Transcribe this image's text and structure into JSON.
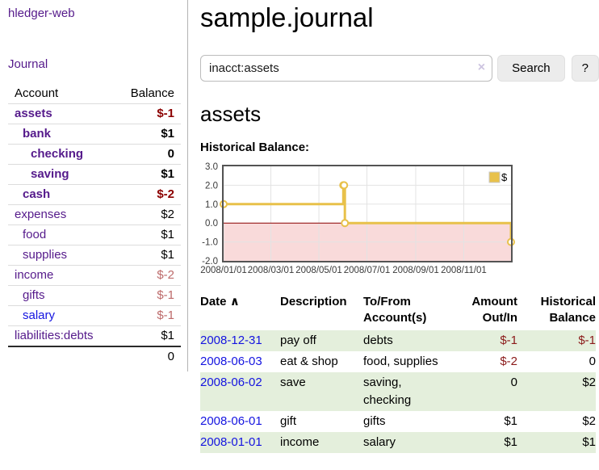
{
  "sidebar": {
    "brand": "hledger-web",
    "journal_link": "Journal",
    "accounts": {
      "col_account": "Account",
      "col_balance": "Balance",
      "rows": [
        {
          "name": "assets",
          "balance": "$-1",
          "indent": 1,
          "bold": true,
          "neg": "strong"
        },
        {
          "name": "bank",
          "balance": "$1",
          "indent": 2,
          "bold": true
        },
        {
          "name": "checking",
          "balance": "0",
          "indent": 3,
          "bold": true
        },
        {
          "name": "saving",
          "balance": "$1",
          "indent": 3,
          "bold": true
        },
        {
          "name": "cash",
          "balance": "$-2",
          "indent": 2,
          "bold": true,
          "neg": "strong"
        },
        {
          "name": "expenses",
          "balance": "$2",
          "indent": 1
        },
        {
          "name": "food",
          "balance": "$1",
          "indent": 2
        },
        {
          "name": "supplies",
          "balance": "$1",
          "indent": 2
        },
        {
          "name": "income",
          "balance": "$-2",
          "indent": 1,
          "neg": "soft"
        },
        {
          "name": "gifts",
          "balance": "$-1",
          "indent": 2,
          "neg": "soft"
        },
        {
          "name": "salary",
          "balance": "$-1",
          "indent": 2,
          "neg": "soft",
          "blue": true
        },
        {
          "name": "liabilities:debts",
          "balance": "$1",
          "indent": 1
        }
      ],
      "total": "0"
    }
  },
  "header": {
    "title": "sample.journal"
  },
  "search": {
    "value": "inacct:assets",
    "clear_icon": "×",
    "search_button": "Search",
    "help_button": "?"
  },
  "account_page": {
    "heading": "assets",
    "chart_title": "Historical Balance:"
  },
  "chart_data": {
    "type": "line",
    "title": "Historical Balance:",
    "legend": [
      {
        "label": "$",
        "color": "#e8c14a"
      }
    ],
    "series": [
      {
        "name": "$",
        "step": true,
        "points": [
          [
            "2008-01-01",
            1
          ],
          [
            "2008-06-01",
            2
          ],
          [
            "2008-06-02",
            2
          ],
          [
            "2008-06-03",
            0
          ],
          [
            "2008-12-31",
            -1
          ]
        ]
      }
    ],
    "x_range": [
      "2008-01-01",
      "2008-12-31"
    ],
    "ylim": [
      -2,
      3
    ],
    "y_ticks": [
      {
        "label": "3.0",
        "value": 3
      },
      {
        "label": "2.0",
        "value": 2
      },
      {
        "label": "1.0",
        "value": 1
      },
      {
        "label": "0.0",
        "value": 0
      },
      {
        "label": "-1.0",
        "value": -1
      },
      {
        "label": "-2.0",
        "value": -2
      }
    ],
    "x_ticks": [
      {
        "label": "2008/01/01",
        "date": "2008-01-01"
      },
      {
        "label": "2008/03/01",
        "date": "2008-03-01"
      },
      {
        "label": "2008/05/01",
        "date": "2008-05-01"
      },
      {
        "label": "2008/07/01",
        "date": "2008-07-01"
      },
      {
        "label": "2008/09/01",
        "date": "2008-09-01"
      },
      {
        "label": "2008/11/01",
        "date": "2008-11-01"
      }
    ],
    "legend_position": "top-right",
    "grid": true,
    "colors": {
      "line": "#e8c14a",
      "negative_region": "#f9dada",
      "zero_line": "#8b0000",
      "grid": "#e3e3e3",
      "frame": "#545454"
    }
  },
  "register": {
    "headers": {
      "date": "Date",
      "sort_icon": "∧",
      "description": "Description",
      "accounts": "To/From Account(s)",
      "amount": "Amount Out/In",
      "balance": "Historical Balance"
    },
    "rows": [
      {
        "date": "2008-12-31",
        "description": "pay off",
        "accounts": "debts",
        "amount": "$-1",
        "amount_neg": true,
        "balance": "$-1",
        "balance_neg": true
      },
      {
        "date": "2008-06-03",
        "description": "eat & shop",
        "accounts": "food, supplies",
        "amount": "$-2",
        "amount_neg": true,
        "balance": "0",
        "balance_neg": false
      },
      {
        "date": "2008-06-02",
        "description": "save",
        "accounts": "saving, checking",
        "amount": "0",
        "amount_neg": false,
        "balance": "$2",
        "balance_neg": false
      },
      {
        "date": "2008-06-01",
        "description": "gift",
        "accounts": "gifts",
        "amount": "$1",
        "amount_neg": false,
        "balance": "$2",
        "balance_neg": false
      },
      {
        "date": "2008-01-01",
        "description": "income",
        "accounts": "salary",
        "amount": "$1",
        "amount_neg": false,
        "balance": "$1",
        "balance_neg": false
      }
    ]
  }
}
